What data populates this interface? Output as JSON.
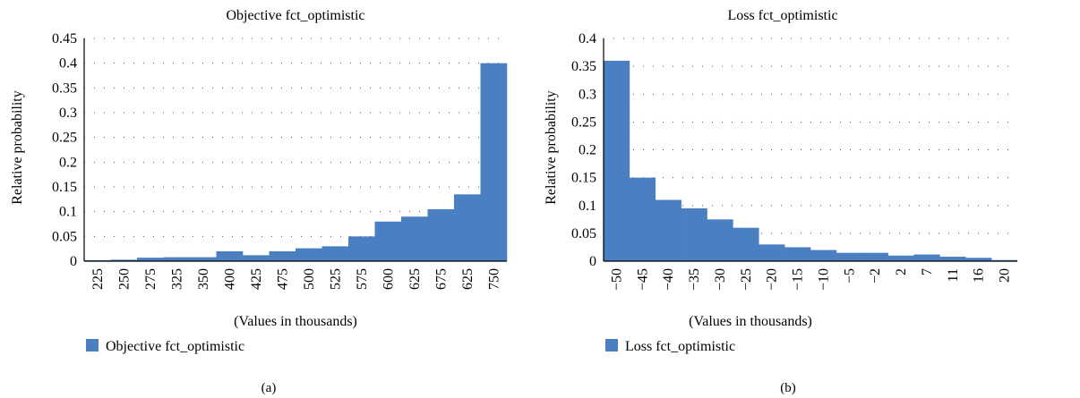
{
  "charts": [
    {
      "type": "bar",
      "title": "Objective fct_optimistic",
      "xlabel": "(Values in thousands)",
      "ylabel": "Relative probability",
      "legend": "Objective fct_optimistic",
      "panel_label": "(a)",
      "bar_color": "#4a7fc1",
      "ylim": [
        0,
        0.45
      ],
      "yticks": [
        "0",
        "0.05",
        "0.1",
        "0.15",
        "0.2",
        "0.25",
        "0.3",
        "0.35",
        "0.4",
        "0.45"
      ],
      "categories": [
        "225",
        "250",
        "275",
        "325",
        "350",
        "400",
        "425",
        "475",
        "500",
        "525",
        "575",
        "600",
        "625",
        "675",
        "625",
        "750"
      ],
      "values": [
        0.002,
        0.003,
        0.007,
        0.008,
        0.008,
        0.02,
        0.012,
        0.02,
        0.026,
        0.03,
        0.05,
        0.08,
        0.09,
        0.105,
        0.135,
        0.4
      ]
    },
    {
      "type": "bar",
      "title": "Loss fct_optimistic",
      "xlabel": "(Values in thousands)",
      "ylabel": "Relative probability",
      "legend": "Loss fct_optimistic",
      "panel_label": "(b)",
      "bar_color": "#4a7fc1",
      "ylim": [
        0,
        0.4
      ],
      "yticks": [
        "0",
        "0.05",
        "0.1",
        "0.15",
        "0.2",
        "0.25",
        "0.3",
        "0.35",
        "0.4"
      ],
      "categories": [
        "−50",
        "−45",
        "−40",
        "−35",
        "−30",
        "−25",
        "−20",
        "−15",
        "−10",
        "−5",
        "−2",
        "2",
        "7",
        "11",
        "16",
        "20"
      ],
      "values": [
        0.36,
        0.15,
        0.11,
        0.095,
        0.075,
        0.06,
        0.03,
        0.025,
        0.02,
        0.015,
        0.015,
        0.01,
        0.012,
        0.008,
        0.006,
        0.002
      ]
    }
  ]
}
